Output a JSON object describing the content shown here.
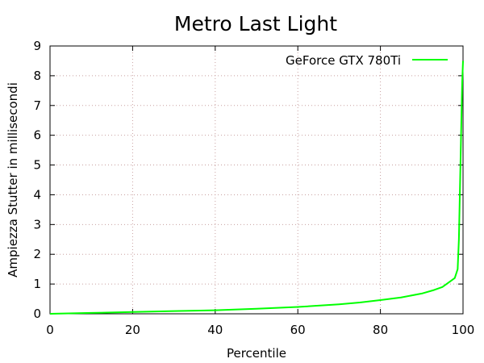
{
  "chart_data": {
    "type": "line",
    "title": "Metro Last Light",
    "xlabel": "Percentile",
    "ylabel": "Ampiezza Stutter in millisecondi",
    "xlim": [
      0,
      100
    ],
    "ylim": [
      0,
      9
    ],
    "x_ticks": [
      "0",
      "20",
      "40",
      "60",
      "80",
      "100"
    ],
    "y_ticks": [
      "0",
      "1",
      "2",
      "3",
      "4",
      "5",
      "6",
      "7",
      "8",
      "9"
    ],
    "grid": true,
    "legend_position": "top-right",
    "series": [
      {
        "name": "GeForce GTX 780Ti",
        "color": "#00ff00",
        "points": [
          [
            0,
            0.0
          ],
          [
            10,
            0.03
          ],
          [
            20,
            0.06
          ],
          [
            30,
            0.09
          ],
          [
            40,
            0.12
          ],
          [
            50,
            0.17
          ],
          [
            60,
            0.23
          ],
          [
            70,
            0.32
          ],
          [
            75,
            0.38
          ],
          [
            80,
            0.46
          ],
          [
            85,
            0.55
          ],
          [
            90,
            0.68
          ],
          [
            93,
            0.8
          ],
          [
            95,
            0.9
          ],
          [
            97,
            1.1
          ],
          [
            98,
            1.2
          ],
          [
            98.7,
            1.5
          ],
          [
            99,
            2.5
          ],
          [
            99.3,
            4.5
          ],
          [
            99.6,
            6.5
          ],
          [
            99.8,
            7.8
          ],
          [
            100,
            8.5
          ]
        ]
      }
    ]
  }
}
